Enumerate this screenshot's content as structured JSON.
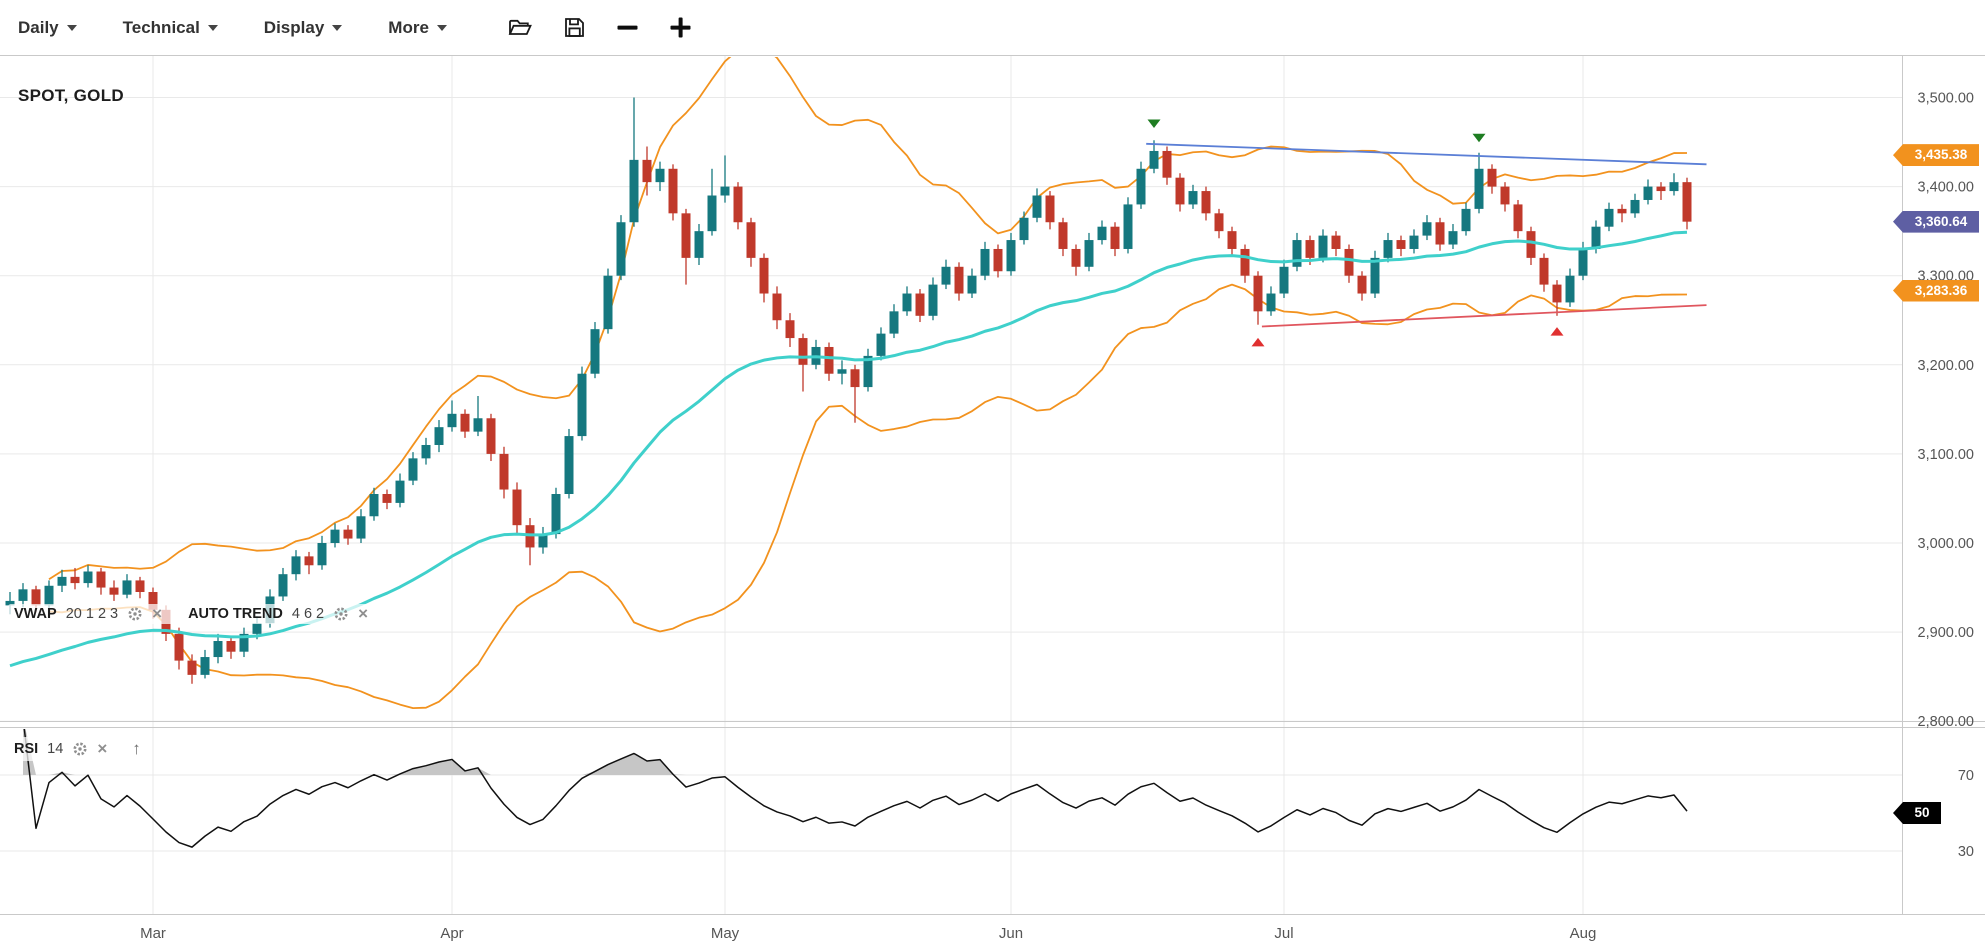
{
  "toolbar": {
    "menus": [
      {
        "label": "Daily"
      },
      {
        "label": "Technical"
      },
      {
        "label": "Display"
      },
      {
        "label": "More"
      }
    ],
    "icons": [
      "open-folder",
      "save",
      "zoom-out",
      "zoom-in"
    ]
  },
  "symbol_label": "SPOT, GOLD",
  "legends": {
    "vwap": {
      "name": "VWAP",
      "params": "20 1 2 3"
    },
    "auto_trend": {
      "name": "AUTO TREND",
      "params": "4 6 2"
    },
    "rsi": {
      "name": "RSI",
      "params": "14"
    }
  },
  "price_axis": {
    "tick_labels": [
      "3,500.00",
      "3,400.00",
      "3,300.00",
      "3,200.00",
      "3,100.00",
      "3,000.00",
      "2,900.00",
      "2,800.00"
    ],
    "tick_values": [
      3500,
      3400,
      3300,
      3200,
      3100,
      3000,
      2900,
      2800
    ],
    "badges": [
      {
        "label": "3,435.38",
        "value": 3435.38,
        "color": "#f2921e"
      },
      {
        "label": "3,360.64",
        "value": 3360.64,
        "color": "#5e5fa3"
      },
      {
        "label": "3,283.36",
        "value": 3283.36,
        "color": "#f2921e"
      }
    ]
  },
  "rsi_axis": {
    "tick_labels": [
      "70",
      "30"
    ],
    "tick_values": [
      70,
      30
    ],
    "badge": {
      "label": "50",
      "value": 50,
      "color": "#000000"
    }
  },
  "x_axis": {
    "ticks": [
      {
        "index": 11,
        "label": "Mar"
      },
      {
        "index": 34,
        "label": "Apr"
      },
      {
        "index": 55,
        "label": "May"
      },
      {
        "index": 77,
        "label": "Jun"
      },
      {
        "index": 98,
        "label": "Jul"
      },
      {
        "index": 121,
        "label": "Aug"
      }
    ]
  },
  "chart_data": {
    "type": "candlestick",
    "series_name": "SPOT GOLD daily",
    "timeframe": "Daily",
    "ylim": [
      2800,
      3546
    ],
    "grid": true,
    "last_price": 3360.64,
    "indicators": {
      "vwap_params": "20 1 2 3",
      "auto_trend_params": "4 6 2",
      "rsi_period": 14
    },
    "ohlc": [
      [
        2930,
        2945,
        2920,
        2935
      ],
      [
        2935,
        2955,
        2928,
        2948
      ],
      [
        2948,
        2952,
        2922,
        2930
      ],
      [
        2930,
        2958,
        2925,
        2952
      ],
      [
        2952,
        2970,
        2945,
        2962
      ],
      [
        2962,
        2972,
        2948,
        2955
      ],
      [
        2955,
        2975,
        2950,
        2968
      ],
      [
        2968,
        2972,
        2942,
        2950
      ],
      [
        2950,
        2958,
        2935,
        2942
      ],
      [
        2942,
        2965,
        2938,
        2958
      ],
      [
        2958,
        2962,
        2938,
        2945
      ],
      [
        2945,
        2950,
        2915,
        2925
      ],
      [
        2925,
        2930,
        2890,
        2898
      ],
      [
        2898,
        2905,
        2858,
        2868
      ],
      [
        2868,
        2875,
        2842,
        2852
      ],
      [
        2852,
        2880,
        2848,
        2872
      ],
      [
        2872,
        2898,
        2865,
        2890
      ],
      [
        2890,
        2895,
        2870,
        2878
      ],
      [
        2878,
        2905,
        2872,
        2898
      ],
      [
        2898,
        2918,
        2892,
        2910
      ],
      [
        2910,
        2948,
        2905,
        2940
      ],
      [
        2940,
        2972,
        2935,
        2965
      ],
      [
        2965,
        2992,
        2958,
        2985
      ],
      [
        2985,
        2990,
        2965,
        2975
      ],
      [
        2975,
        3008,
        2970,
        3000
      ],
      [
        3000,
        3022,
        2995,
        3015
      ],
      [
        3015,
        3020,
        2998,
        3005
      ],
      [
        3005,
        3038,
        3000,
        3030
      ],
      [
        3030,
        3062,
        3025,
        3055
      ],
      [
        3055,
        3060,
        3038,
        3045
      ],
      [
        3045,
        3078,
        3040,
        3070
      ],
      [
        3070,
        3102,
        3065,
        3095
      ],
      [
        3095,
        3118,
        3088,
        3110
      ],
      [
        3110,
        3138,
        3102,
        3130
      ],
      [
        3130,
        3160,
        3125,
        3145
      ],
      [
        3145,
        3150,
        3118,
        3125
      ],
      [
        3125,
        3165,
        3120,
        3140
      ],
      [
        3140,
        3145,
        3092,
        3100
      ],
      [
        3100,
        3108,
        3050,
        3060
      ],
      [
        3060,
        3068,
        3010,
        3020
      ],
      [
        3020,
        3028,
        2975,
        2995
      ],
      [
        2995,
        3018,
        2988,
        3010
      ],
      [
        3010,
        3062,
        3005,
        3055
      ],
      [
        3055,
        3128,
        3050,
        3120
      ],
      [
        3120,
        3198,
        3115,
        3190
      ],
      [
        3190,
        3248,
        3185,
        3240
      ],
      [
        3240,
        3308,
        3235,
        3300
      ],
      [
        3300,
        3368,
        3295,
        3360
      ],
      [
        3360,
        3500,
        3355,
        3430
      ],
      [
        3430,
        3445,
        3390,
        3405
      ],
      [
        3405,
        3428,
        3395,
        3420
      ],
      [
        3420,
        3425,
        3362,
        3370
      ],
      [
        3370,
        3375,
        3290,
        3320
      ],
      [
        3320,
        3358,
        3312,
        3350
      ],
      [
        3350,
        3420,
        3345,
        3390
      ],
      [
        3390,
        3435,
        3382,
        3400
      ],
      [
        3400,
        3405,
        3352,
        3360
      ],
      [
        3360,
        3365,
        3310,
        3320
      ],
      [
        3320,
        3325,
        3270,
        3280
      ],
      [
        3280,
        3288,
        3240,
        3250
      ],
      [
        3250,
        3258,
        3220,
        3230
      ],
      [
        3230,
        3235,
        3170,
        3200
      ],
      [
        3200,
        3228,
        3195,
        3220
      ],
      [
        3220,
        3225,
        3182,
        3190
      ],
      [
        3190,
        3205,
        3178,
        3195
      ],
      [
        3195,
        3200,
        3135,
        3175
      ],
      [
        3175,
        3218,
        3170,
        3210
      ],
      [
        3210,
        3242,
        3205,
        3235
      ],
      [
        3235,
        3268,
        3230,
        3260
      ],
      [
        3260,
        3288,
        3255,
        3280
      ],
      [
        3280,
        3285,
        3248,
        3255
      ],
      [
        3255,
        3298,
        3250,
        3290
      ],
      [
        3290,
        3318,
        3285,
        3310
      ],
      [
        3310,
        3315,
        3272,
        3280
      ],
      [
        3280,
        3308,
        3275,
        3300
      ],
      [
        3300,
        3338,
        3295,
        3330
      ],
      [
        3330,
        3335,
        3298,
        3305
      ],
      [
        3305,
        3348,
        3300,
        3340
      ],
      [
        3340,
        3372,
        3335,
        3365
      ],
      [
        3365,
        3398,
        3360,
        3390
      ],
      [
        3390,
        3395,
        3352,
        3360
      ],
      [
        3360,
        3365,
        3322,
        3330
      ],
      [
        3330,
        3335,
        3300,
        3310
      ],
      [
        3310,
        3348,
        3305,
        3340
      ],
      [
        3340,
        3362,
        3335,
        3355
      ],
      [
        3355,
        3360,
        3322,
        3330
      ],
      [
        3330,
        3388,
        3325,
        3380
      ],
      [
        3380,
        3428,
        3375,
        3420
      ],
      [
        3420,
        3452,
        3415,
        3440
      ],
      [
        3440,
        3445,
        3402,
        3410
      ],
      [
        3410,
        3415,
        3372,
        3380
      ],
      [
        3380,
        3402,
        3375,
        3395
      ],
      [
        3395,
        3400,
        3362,
        3370
      ],
      [
        3370,
        3375,
        3342,
        3350
      ],
      [
        3350,
        3355,
        3322,
        3330
      ],
      [
        3330,
        3335,
        3292,
        3300
      ],
      [
        3300,
        3305,
        3245,
        3260
      ],
      [
        3260,
        3288,
        3255,
        3280
      ],
      [
        3280,
        3318,
        3275,
        3310
      ],
      [
        3310,
        3348,
        3305,
        3340
      ],
      [
        3340,
        3345,
        3312,
        3320
      ],
      [
        3320,
        3352,
        3315,
        3345
      ],
      [
        3345,
        3350,
        3322,
        3330
      ],
      [
        3330,
        3335,
        3292,
        3300
      ],
      [
        3300,
        3305,
        3272,
        3280
      ],
      [
        3280,
        3328,
        3275,
        3320
      ],
      [
        3320,
        3348,
        3315,
        3340
      ],
      [
        3340,
        3345,
        3322,
        3330
      ],
      [
        3330,
        3352,
        3325,
        3345
      ],
      [
        3345,
        3368,
        3340,
        3360
      ],
      [
        3360,
        3365,
        3328,
        3335
      ],
      [
        3335,
        3358,
        3330,
        3350
      ],
      [
        3350,
        3382,
        3345,
        3375
      ],
      [
        3375,
        3438,
        3370,
        3420
      ],
      [
        3420,
        3425,
        3392,
        3400
      ],
      [
        3400,
        3405,
        3372,
        3380
      ],
      [
        3380,
        3385,
        3342,
        3350
      ],
      [
        3350,
        3355,
        3312,
        3320
      ],
      [
        3320,
        3325,
        3282,
        3290
      ],
      [
        3290,
        3295,
        3255,
        3270
      ],
      [
        3270,
        3308,
        3265,
        3300
      ],
      [
        3300,
        3338,
        3295,
        3330
      ],
      [
        3330,
        3362,
        3325,
        3355
      ],
      [
        3355,
        3382,
        3350,
        3375
      ],
      [
        3375,
        3380,
        3360,
        3370
      ],
      [
        3370,
        3392,
        3365,
        3385
      ],
      [
        3385,
        3408,
        3380,
        3400
      ],
      [
        3400,
        3405,
        3385,
        3395
      ],
      [
        3395,
        3415,
        3390,
        3405
      ],
      [
        3405,
        3410,
        3352,
        3360.64
      ]
    ],
    "trendlines": [
      {
        "name": "resistance",
        "i1": 87.4,
        "p1": 3448,
        "i2": 130.5,
        "p2": 3425,
        "color": "#5b7fd6"
      },
      {
        "name": "support",
        "i1": 96.3,
        "p1": 3243,
        "i2": 130.5,
        "p2": 3267,
        "color": "#e0565e"
      }
    ],
    "markers": [
      {
        "index": 88,
        "type": "sell",
        "price": 3468
      },
      {
        "index": 96,
        "type": "buy",
        "price": 3228
      },
      {
        "index": 113,
        "type": "sell",
        "price": 3452
      },
      {
        "index": 119,
        "type": "buy",
        "price": 3240
      }
    ],
    "colors": {
      "up": "#15787f",
      "down": "#c0392b",
      "vwap": "#3fd0cb",
      "band": "#f2921e",
      "rsi": "#111111",
      "rsi_fill": "#c6c6c6",
      "buy": "#e03030",
      "sell": "#1e7d22"
    }
  }
}
